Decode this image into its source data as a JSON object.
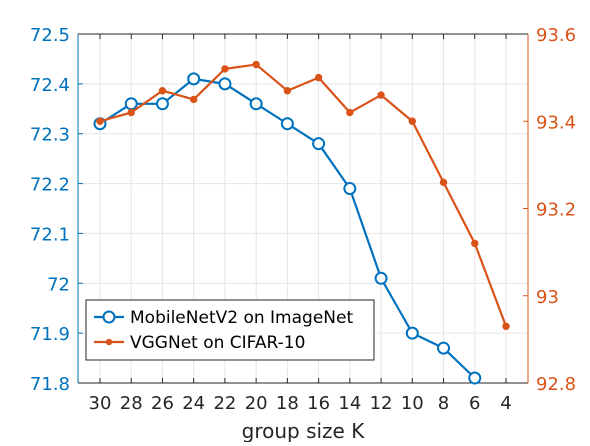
{
  "chart_data": {
    "type": "line",
    "xlabel": "group size K",
    "x": [
      30,
      28,
      26,
      24,
      22,
      20,
      18,
      16,
      14,
      12,
      10,
      8,
      6,
      4
    ],
    "x_reversed": true,
    "y_left": {
      "ylim": [
        71.8,
        72.5
      ],
      "ticks": [
        "71.8",
        "71.9",
        "72",
        "72.1",
        "72.2",
        "72.3",
        "72.4",
        "72.5"
      ],
      "color": "#0072BD"
    },
    "y_right": {
      "ylim": [
        92.8,
        93.6
      ],
      "ticks": [
        "92.8",
        "93",
        "93.2",
        "93.4",
        "93.6"
      ],
      "color": "#D95319"
    },
    "grid": true,
    "legend_position": "bottom-left",
    "series": [
      {
        "name": "MobileNetV2 on ImageNet",
        "axis": "left",
        "marker": "circle",
        "color": "#0072BD",
        "x": [
          30,
          28,
          26,
          24,
          22,
          20,
          18,
          16,
          14,
          12,
          10,
          8,
          6
        ],
        "values": [
          72.32,
          72.36,
          72.36,
          72.41,
          72.4,
          72.36,
          72.32,
          72.28,
          72.19,
          72.01,
          71.9,
          71.87,
          71.81
        ]
      },
      {
        "name": "VGGNet on CIFAR-10",
        "axis": "right",
        "marker": "dot",
        "color": "#D95319",
        "x": [
          30,
          28,
          26,
          24,
          22,
          20,
          18,
          16,
          14,
          12,
          10,
          8,
          6,
          4
        ],
        "values": [
          93.4,
          93.42,
          93.47,
          93.45,
          93.52,
          93.53,
          93.47,
          93.5,
          93.42,
          93.46,
          93.4,
          93.26,
          93.12,
          92.93
        ]
      }
    ]
  }
}
